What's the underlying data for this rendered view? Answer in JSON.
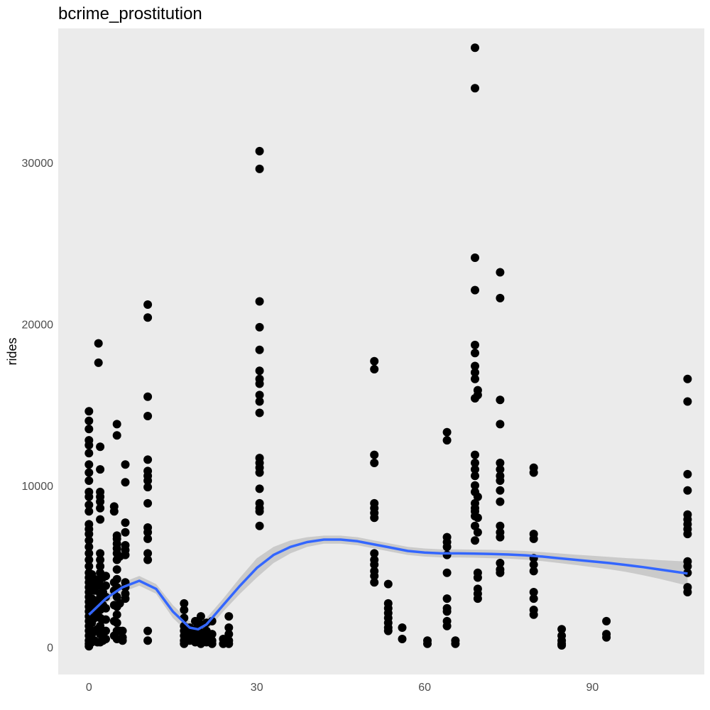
{
  "chart_data": {
    "type": "scatter",
    "title": "bcrime_prostitution",
    "xlabel": "",
    "ylabel": "rides",
    "xlim": [
      -5.5,
      110
    ],
    "ylim": [
      -1700,
      38300
    ],
    "x_ticks": [
      0,
      30,
      60,
      90
    ],
    "y_ticks": [
      0,
      10000,
      20000,
      30000
    ],
    "x_tick_labels": [
      "0",
      "30",
      "60",
      "90"
    ],
    "y_tick_labels": [
      "0",
      "10000",
      "20000",
      "30000"
    ],
    "grid": false,
    "panel_color": "#ebebeb",
    "point_color": "#000000",
    "smooth_color": "#3366ff",
    "band_color": "#c4c4c4",
    "points": [
      [
        0,
        14600
      ],
      [
        0,
        14000
      ],
      [
        0,
        13500
      ],
      [
        0,
        12800
      ],
      [
        0,
        12500
      ],
      [
        0,
        12000
      ],
      [
        0,
        11300
      ],
      [
        0,
        10800
      ],
      [
        0,
        10300
      ],
      [
        0,
        9600
      ],
      [
        0,
        9300
      ],
      [
        0,
        8800
      ],
      [
        0,
        8400
      ],
      [
        0,
        7600
      ],
      [
        0,
        7300
      ],
      [
        0,
        7000
      ],
      [
        0,
        6600
      ],
      [
        0,
        6200
      ],
      [
        0,
        5800
      ],
      [
        0,
        5400
      ],
      [
        0,
        5000
      ],
      [
        0,
        4600
      ],
      [
        0,
        4300
      ],
      [
        0,
        4000
      ],
      [
        0,
        3700
      ],
      [
        0,
        3400
      ],
      [
        0,
        3100
      ],
      [
        0,
        2800
      ],
      [
        0,
        2500
      ],
      [
        0,
        2200
      ],
      [
        0,
        1900
      ],
      [
        0,
        1600
      ],
      [
        0,
        1300
      ],
      [
        0,
        1000
      ],
      [
        0,
        700
      ],
      [
        0,
        400
      ],
      [
        0,
        200
      ],
      [
        0,
        50
      ],
      [
        0.5,
        4500
      ],
      [
        0.5,
        3800
      ],
      [
        0.5,
        3000
      ],
      [
        0.5,
        2300
      ],
      [
        0.5,
        1500
      ],
      [
        0.5,
        800
      ],
      [
        0.5,
        300
      ],
      [
        1,
        4200
      ],
      [
        1,
        3500
      ],
      [
        1,
        2600
      ],
      [
        1,
        1800
      ],
      [
        1,
        1000
      ],
      [
        1,
        400
      ],
      [
        1.5,
        3900
      ],
      [
        1.5,
        2900
      ],
      [
        1.5,
        2000
      ],
      [
        1.5,
        1100
      ],
      [
        1.5,
        300
      ],
      [
        1.7,
        18800
      ],
      [
        1.7,
        17600
      ],
      [
        2,
        12400
      ],
      [
        2,
        11000
      ],
      [
        2,
        9600
      ],
      [
        2,
        9300
      ],
      [
        2,
        9000
      ],
      [
        2,
        8600
      ],
      [
        2,
        7900
      ],
      [
        2,
        5800
      ],
      [
        2,
        5400
      ],
      [
        2,
        5000
      ],
      [
        2,
        4600
      ],
      [
        2,
        4200
      ],
      [
        2,
        3800
      ],
      [
        2,
        3300
      ],
      [
        2,
        2800
      ],
      [
        2,
        2300
      ],
      [
        2,
        1800
      ],
      [
        2,
        1300
      ],
      [
        2,
        800
      ],
      [
        2,
        300
      ],
      [
        2.5,
        4300
      ],
      [
        2.5,
        3400
      ],
      [
        2.5,
        2600
      ],
      [
        2.5,
        1700
      ],
      [
        2.5,
        900
      ],
      [
        2.5,
        400
      ],
      [
        3,
        4400
      ],
      [
        3,
        3800
      ],
      [
        3,
        3100
      ],
      [
        3,
        2400
      ],
      [
        3,
        1700
      ],
      [
        3,
        1000
      ],
      [
        3,
        500
      ],
      [
        4.5,
        8700
      ],
      [
        4.5,
        8400
      ],
      [
        4.5,
        4000
      ],
      [
        4.5,
        3500
      ],
      [
        4.5,
        2600
      ],
      [
        4.5,
        1600
      ],
      [
        4.5,
        700
      ],
      [
        5,
        13800
      ],
      [
        5,
        13100
      ],
      [
        5,
        6900
      ],
      [
        5,
        6700
      ],
      [
        5,
        6400
      ],
      [
        5,
        6100
      ],
      [
        5,
        5800
      ],
      [
        5,
        5400
      ],
      [
        5,
        4800
      ],
      [
        5,
        4200
      ],
      [
        5,
        3700
      ],
      [
        5,
        3100
      ],
      [
        5,
        2500
      ],
      [
        5,
        2000
      ],
      [
        5,
        1500
      ],
      [
        5,
        1000
      ],
      [
        5,
        500
      ],
      [
        5.5,
        5600
      ],
      [
        5.5,
        2700
      ],
      [
        5.5,
        1000
      ],
      [
        6,
        1000
      ],
      [
        6,
        600
      ],
      [
        6,
        400
      ],
      [
        6.5,
        11300
      ],
      [
        6.5,
        10200
      ],
      [
        6.5,
        7700
      ],
      [
        6.5,
        7100
      ],
      [
        6.5,
        6300
      ],
      [
        6.5,
        6000
      ],
      [
        6.5,
        5700
      ],
      [
        6.5,
        4000
      ],
      [
        6.5,
        3700
      ],
      [
        6.5,
        3300
      ],
      [
        6.5,
        3000
      ],
      [
        10.5,
        21200
      ],
      [
        10.5,
        20400
      ],
      [
        10.5,
        15500
      ],
      [
        10.5,
        14300
      ],
      [
        10.5,
        11600
      ],
      [
        10.5,
        10900
      ],
      [
        10.5,
        10600
      ],
      [
        10.5,
        10300
      ],
      [
        10.5,
        9900
      ],
      [
        10.5,
        8900
      ],
      [
        10.5,
        7400
      ],
      [
        10.5,
        7100
      ],
      [
        10.5,
        6700
      ],
      [
        10.5,
        5800
      ],
      [
        10.5,
        5400
      ],
      [
        10.5,
        1000
      ],
      [
        10.5,
        400
      ],
      [
        17,
        2700
      ],
      [
        17,
        2300
      ],
      [
        17,
        1800
      ],
      [
        17,
        1300
      ],
      [
        17,
        1000
      ],
      [
        17,
        700
      ],
      [
        17,
        400
      ],
      [
        17,
        200
      ],
      [
        18,
        1200
      ],
      [
        18,
        800
      ],
      [
        18,
        400
      ],
      [
        19,
        1600
      ],
      [
        19,
        1100
      ],
      [
        19,
        700
      ],
      [
        19,
        300
      ],
      [
        20,
        1900
      ],
      [
        20,
        1400
      ],
      [
        20,
        900
      ],
      [
        20,
        500
      ],
      [
        20,
        200
      ],
      [
        21,
        1500
      ],
      [
        21,
        1000
      ],
      [
        21,
        600
      ],
      [
        21,
        300
      ],
      [
        22,
        1600
      ],
      [
        22,
        800
      ],
      [
        22,
        400
      ],
      [
        22,
        200
      ],
      [
        24,
        500
      ],
      [
        24,
        200
      ],
      [
        25,
        1900
      ],
      [
        25,
        1200
      ],
      [
        25,
        800
      ],
      [
        25,
        400
      ],
      [
        25,
        200
      ],
      [
        30.5,
        30700
      ],
      [
        30.5,
        29600
      ],
      [
        30.5,
        21400
      ],
      [
        30.5,
        19800
      ],
      [
        30.5,
        18400
      ],
      [
        30.5,
        17100
      ],
      [
        30.5,
        16600
      ],
      [
        30.5,
        16300
      ],
      [
        30.5,
        15600
      ],
      [
        30.5,
        15200
      ],
      [
        30.5,
        14500
      ],
      [
        30.5,
        11700
      ],
      [
        30.5,
        11400
      ],
      [
        30.5,
        11100
      ],
      [
        30.5,
        10800
      ],
      [
        30.5,
        9800
      ],
      [
        30.5,
        8900
      ],
      [
        30.5,
        8600
      ],
      [
        30.5,
        8400
      ],
      [
        30.5,
        7500
      ],
      [
        51,
        17700
      ],
      [
        51,
        17200
      ],
      [
        51,
        11900
      ],
      [
        51,
        11400
      ],
      [
        51,
        8900
      ],
      [
        51,
        8600
      ],
      [
        51,
        8300
      ],
      [
        51,
        8000
      ],
      [
        51,
        5800
      ],
      [
        51,
        5400
      ],
      [
        51,
        5100
      ],
      [
        51,
        4700
      ],
      [
        51,
        4400
      ],
      [
        51,
        4000
      ],
      [
        53.5,
        3900
      ],
      [
        53.5,
        2700
      ],
      [
        53.5,
        2400
      ],
      [
        53.5,
        2100
      ],
      [
        53.5,
        1800
      ],
      [
        53.5,
        1500
      ],
      [
        53.5,
        1200
      ],
      [
        53.5,
        1000
      ],
      [
        56,
        1200
      ],
      [
        56,
        500
      ],
      [
        60.5,
        400
      ],
      [
        60.5,
        200
      ],
      [
        64,
        13300
      ],
      [
        64,
        12800
      ],
      [
        64,
        6800
      ],
      [
        64,
        6500
      ],
      [
        64,
        6200
      ],
      [
        64,
        5700
      ],
      [
        64,
        4600
      ],
      [
        64,
        3000
      ],
      [
        64,
        2400
      ],
      [
        64,
        2200
      ],
      [
        64,
        1600
      ],
      [
        64,
        1300
      ],
      [
        65.5,
        400
      ],
      [
        65.5,
        200
      ],
      [
        69,
        37100
      ],
      [
        69,
        34600
      ],
      [
        69,
        24100
      ],
      [
        69,
        22100
      ],
      [
        69,
        18700
      ],
      [
        69,
        18200
      ],
      [
        69,
        17400
      ],
      [
        69,
        17000
      ],
      [
        69,
        16600
      ],
      [
        69,
        15400
      ],
      [
        69,
        11900
      ],
      [
        69,
        11400
      ],
      [
        69,
        11000
      ],
      [
        69,
        10600
      ],
      [
        69,
        10000
      ],
      [
        69,
        9600
      ],
      [
        69,
        8900
      ],
      [
        69,
        8600
      ],
      [
        69,
        8400
      ],
      [
        69,
        8100
      ],
      [
        69,
        7500
      ],
      [
        69,
        6600
      ],
      [
        69.5,
        15900
      ],
      [
        69.5,
        15600
      ],
      [
        69.5,
        9300
      ],
      [
        69.5,
        8000
      ],
      [
        69.5,
        7100
      ],
      [
        69.5,
        4600
      ],
      [
        69.5,
        4300
      ],
      [
        69.5,
        3600
      ],
      [
        69.5,
        3300
      ],
      [
        69.5,
        3000
      ],
      [
        73.5,
        23200
      ],
      [
        73.5,
        21600
      ],
      [
        73.5,
        15300
      ],
      [
        73.5,
        13800
      ],
      [
        73.5,
        11400
      ],
      [
        73.5,
        11000
      ],
      [
        73.5,
        10600
      ],
      [
        73.5,
        10300
      ],
      [
        73.5,
        9700
      ],
      [
        73.5,
        9000
      ],
      [
        73.5,
        7500
      ],
      [
        73.5,
        7100
      ],
      [
        73.5,
        6800
      ],
      [
        73.5,
        5200
      ],
      [
        73.5,
        4800
      ],
      [
        73.5,
        4600
      ],
      [
        79.5,
        11100
      ],
      [
        79.5,
        10800
      ],
      [
        79.5,
        7000
      ],
      [
        79.5,
        6700
      ],
      [
        79.5,
        5500
      ],
      [
        79.5,
        5100
      ],
      [
        79.5,
        4700
      ],
      [
        79.5,
        3400
      ],
      [
        79.5,
        3000
      ],
      [
        79.5,
        2300
      ],
      [
        79.5,
        2000
      ],
      [
        84.5,
        1100
      ],
      [
        84.5,
        700
      ],
      [
        84.5,
        400
      ],
      [
        84.5,
        200
      ],
      [
        84.5,
        100
      ],
      [
        92.5,
        1600
      ],
      [
        92.5,
        800
      ],
      [
        92.5,
        600
      ],
      [
        107,
        16600
      ],
      [
        107,
        15200
      ],
      [
        107,
        10700
      ],
      [
        107,
        9700
      ],
      [
        107,
        8200
      ],
      [
        107,
        7900
      ],
      [
        107,
        7600
      ],
      [
        107,
        7300
      ],
      [
        107,
        7000
      ],
      [
        107,
        5300
      ],
      [
        107,
        5000
      ],
      [
        107,
        4600
      ],
      [
        107,
        3700
      ],
      [
        107,
        3400
      ]
    ],
    "smooth": {
      "x": [
        0,
        3,
        6,
        9,
        12,
        15,
        18,
        19.5,
        21,
        24,
        27,
        30,
        33,
        36,
        39,
        42,
        45,
        48,
        51,
        54,
        57,
        60,
        63,
        66,
        69,
        72,
        75,
        78,
        81,
        84,
        87,
        90,
        93,
        96,
        99,
        102,
        105,
        107
      ],
      "y": [
        2000,
        3000,
        3700,
        4100,
        3600,
        2200,
        1200,
        1100,
        1400,
        2600,
        3800,
        4900,
        5700,
        6200,
        6500,
        6650,
        6650,
        6550,
        6350,
        6150,
        5950,
        5850,
        5800,
        5800,
        5780,
        5760,
        5730,
        5680,
        5600,
        5500,
        5400,
        5300,
        5200,
        5080,
        4950,
        4800,
        4650,
        4550
      ],
      "lo": [
        1600,
        2700,
        3400,
        3800,
        3300,
        1800,
        800,
        700,
        1000,
        2200,
        3300,
        4300,
        5200,
        5800,
        6200,
        6400,
        6400,
        6300,
        6100,
        5900,
        5700,
        5600,
        5550,
        5550,
        5530,
        5500,
        5470,
        5410,
        5320,
        5200,
        5080,
        4950,
        4820,
        4650,
        4450,
        4220,
        3970,
        3800
      ],
      "hi": [
        2400,
        3300,
        4000,
        4400,
        3900,
        2600,
        1600,
        1500,
        1800,
        3000,
        4300,
        5500,
        6200,
        6600,
        6800,
        6900,
        6900,
        6800,
        6600,
        6400,
        6200,
        6100,
        6050,
        6050,
        6030,
        6020,
        5990,
        5950,
        5880,
        5800,
        5720,
        5650,
        5580,
        5510,
        5450,
        5380,
        5330,
        5300
      ]
    }
  }
}
